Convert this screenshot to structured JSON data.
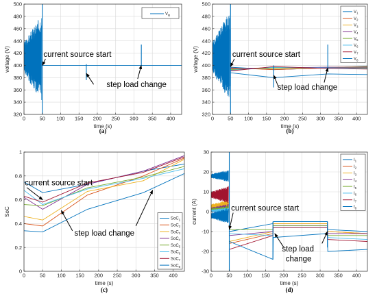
{
  "colors": {
    "c1": "#0072BD",
    "c2": "#D95319",
    "c3": "#EDB120",
    "c4": "#7E2F8E",
    "c5": "#77AC30",
    "c6": "#4DBEEE",
    "c7": "#A2142F",
    "c8": "#0072BD",
    "grid": "#d9d9d9",
    "axis": "#262626"
  },
  "chart_data": [
    {
      "panel": "(a)",
      "type": "line",
      "xlabel": "time (s)",
      "ylabel": "voltage (V)",
      "xlim": [
        0,
        430
      ],
      "ylim": [
        320,
        500
      ],
      "xticks": [
        0,
        50,
        100,
        150,
        200,
        250,
        300,
        350,
        400
      ],
      "yticks": [
        320,
        340,
        360,
        380,
        400,
        420,
        440,
        460,
        480,
        500
      ],
      "grid": true,
      "legend_position": "top-right",
      "series": [
        {
          "name": "V_R",
          "legend_main": "V",
          "legend_sub": "R",
          "color": "#0072BD",
          "oscillation": {
            "x_range": [
              0,
              48
            ],
            "y_range": [
              340,
              484
            ]
          },
          "spikes": [
            {
              "x": 50,
              "y_range": [
                320,
                500
              ]
            },
            {
              "x": 170,
              "y_range": [
                376,
                402
              ]
            },
            {
              "x": 320,
              "y_range": [
                400,
                434
              ]
            }
          ],
          "x": [
            50,
            170,
            320,
            430
          ],
          "y": [
            400,
            400,
            400,
            400
          ]
        }
      ],
      "annotations": [
        {
          "text": "current source start",
          "text_at": [
            53,
            414
          ],
          "arrow_to": [
            50,
            400
          ]
        },
        {
          "text": "step load change",
          "text_at": [
            225,
            365
          ],
          "arrow_from": [
            [
              190,
              369
            ],
            [
              310,
              378
            ]
          ],
          "arrow_to": [
            [
              170,
              387
            ],
            [
              320,
              400
            ]
          ]
        }
      ]
    },
    {
      "panel": "(b)",
      "type": "line",
      "xlabel": "time (s)",
      "ylabel": "voltage (V)",
      "xlim": [
        0,
        430
      ],
      "ylim": [
        320,
        500
      ],
      "xticks": [
        0,
        50,
        100,
        150,
        200,
        250,
        300,
        350,
        400
      ],
      "yticks": [
        320,
        340,
        360,
        380,
        400,
        420,
        440,
        460,
        480,
        500
      ],
      "grid": true,
      "legend_position": "top-right",
      "oscillation": {
        "x_range": [
          0,
          48
        ],
        "y_range": [
          340,
          488
        ]
      },
      "spikes": [
        {
          "x": 50,
          "y_range": [
            320,
            500
          ]
        },
        {
          "x": 170,
          "y_range": [
            364,
            400
          ]
        },
        {
          "x": 320,
          "y_range": [
            392,
            434
          ]
        }
      ],
      "x": [
        50,
        170,
        320,
        430
      ],
      "series": [
        {
          "name": "V_1",
          "legend_main": "V",
          "legend_sub": "1",
          "color": "#0072BD",
          "y": [
            397,
            393,
            396,
            399
          ]
        },
        {
          "name": "V_2",
          "legend_main": "V",
          "legend_sub": "2",
          "color": "#D95319",
          "y": [
            396,
            393,
            396,
            398
          ]
        },
        {
          "name": "V_3",
          "legend_main": "V",
          "legend_sub": "3",
          "color": "#EDB120",
          "y": [
            394,
            395,
            397,
            398
          ]
        },
        {
          "name": "V_4",
          "legend_main": "V",
          "legend_sub": "4",
          "color": "#7E2F8E",
          "y": [
            395,
            396,
            397,
            397
          ]
        },
        {
          "name": "V_5",
          "legend_main": "V",
          "legend_sub": "5",
          "color": "#77AC30",
          "y": [
            393,
            396,
            396,
            396
          ]
        },
        {
          "name": "V_6",
          "legend_main": "V",
          "legend_sub": "6",
          "color": "#4DBEEE",
          "y": [
            392,
            397,
            396,
            395
          ]
        },
        {
          "name": "V_7",
          "legend_main": "V",
          "legend_sub": "7",
          "color": "#A2142F",
          "y": [
            391,
            398,
            395,
            394
          ]
        },
        {
          "name": "V_8",
          "legend_main": "V",
          "legend_sub": "8",
          "color": "#0072BD",
          "y": [
            388,
            380,
            386,
            385
          ]
        }
      ],
      "annotations": [
        {
          "text": "current source start",
          "text_at": [
            55,
            414
          ],
          "arrow_to": [
            50,
            398
          ]
        },
        {
          "text": "step load change",
          "text_at": [
            180,
            360
          ],
          "arrow_from": [
            [
              183,
              365
            ],
            [
              310,
              372
            ]
          ],
          "arrow_to": [
            [
              170,
              384
            ],
            [
              320,
              396
            ]
          ]
        }
      ]
    },
    {
      "panel": "(c)",
      "type": "line",
      "xlabel": "time (s)",
      "ylabel": "SoC",
      "xlim": [
        0,
        430
      ],
      "ylim": [
        0,
        1
      ],
      "xticks": [
        0,
        50,
        100,
        150,
        200,
        250,
        300,
        350,
        400
      ],
      "yticks": [
        0,
        0.2,
        0.4,
        0.6,
        0.8,
        1
      ],
      "grid": true,
      "legend_position": "bottom-right",
      "x": [
        0,
        50,
        170,
        320,
        430
      ],
      "series": [
        {
          "name": "SoC_1",
          "legend_main": "SoC",
          "legend_sub": "1",
          "color": "#0072BD",
          "y": [
            0.75,
            0.66,
            0.73,
            0.84,
            0.9
          ]
        },
        {
          "name": "SoC_2",
          "legend_main": "SoC",
          "legend_sub": "2",
          "color": "#D95319",
          "y": [
            0.4,
            0.38,
            0.64,
            0.8,
            0.95
          ]
        },
        {
          "name": "SoC_3",
          "legend_main": "SoC",
          "legend_sub": "3",
          "color": "#EDB120",
          "y": [
            0.46,
            0.43,
            0.67,
            0.76,
            0.94
          ]
        },
        {
          "name": "SoC_4",
          "legend_main": "SoC",
          "legend_sub": "4",
          "color": "#7E2F8E",
          "y": [
            0.62,
            0.52,
            0.73,
            0.84,
            0.97
          ]
        },
        {
          "name": "SoC_5",
          "legend_main": "SoC",
          "legend_sub": "5",
          "color": "#77AC30",
          "y": [
            0.56,
            0.55,
            0.7,
            0.79,
            0.88
          ]
        },
        {
          "name": "SoC_6",
          "legend_main": "SoC",
          "legend_sub": "6",
          "color": "#4DBEEE",
          "y": [
            0.68,
            0.56,
            0.69,
            0.78,
            0.86
          ]
        },
        {
          "name": "SoC_7",
          "legend_main": "SoC",
          "legend_sub": "7",
          "color": "#A2142F",
          "y": [
            0.63,
            0.58,
            0.74,
            0.83,
            0.96
          ]
        },
        {
          "name": "SoC_8",
          "legend_main": "SoC",
          "legend_sub": "8",
          "color": "#0072BD",
          "y": [
            0.34,
            0.33,
            0.52,
            0.66,
            0.82
          ]
        }
      ],
      "annotations": [
        {
          "text": "current source start",
          "text_at": [
            2,
            0.72
          ],
          "arrow_to": [
            50,
            0.6
          ]
        },
        {
          "text": "step load change",
          "text_at": [
            135,
            0.3
          ],
          "arrow_from": [
            [
              130,
              0.34
            ],
            [
              300,
              0.38
            ]
          ],
          "arrow_to": [
            [
              100,
              0.51
            ],
            [
              345,
              0.68
            ]
          ]
        }
      ]
    },
    {
      "panel": "(d)",
      "type": "line",
      "xlabel": "time (s)",
      "ylabel": "current (A)",
      "xlim": [
        0,
        430
      ],
      "ylim": [
        -30,
        30
      ],
      "xticks": [
        0,
        50,
        100,
        150,
        200,
        250,
        300,
        350,
        400
      ],
      "yticks": [
        -30,
        -20,
        -10,
        0,
        10,
        20,
        30
      ],
      "grid": true,
      "legend_position": "top-right",
      "spikes": [
        {
          "x": 50,
          "y_range": [
            -30,
            30
          ]
        },
        {
          "x": 170,
          "y_range": [
            -24,
            -5
          ]
        },
        {
          "x": 320,
          "y_range": [
            -18,
            -5
          ]
        }
      ],
      "x": [
        50,
        170,
        171,
        320,
        321,
        430
      ],
      "series": [
        {
          "name": "I_1",
          "legend_main": "I",
          "legend_sub": "1",
          "color": "#0072BD",
          "oscillation_y": [
            15,
            21
          ],
          "y": [
            -10,
            -6,
            -5,
            -5,
            -9,
            -10
          ]
        },
        {
          "name": "I_2",
          "legend_main": "I",
          "legend_sub": "2",
          "color": "#D95319",
          "oscillation_y": [
            -2,
            5
          ],
          "y": [
            -16,
            -11,
            -6,
            -6,
            -10,
            -11
          ]
        },
        {
          "name": "I_3",
          "legend_main": "I",
          "legend_sub": "3",
          "color": "#EDB120",
          "oscillation_y": [
            -1,
            6
          ],
          "y": [
            -15,
            -10,
            -6,
            -6,
            -10,
            -11
          ]
        },
        {
          "name": "I_4",
          "legend_main": "I",
          "legend_sub": "4",
          "color": "#7E2F8E",
          "oscillation_y": [
            -2,
            4
          ],
          "y": [
            -12,
            -10,
            -7,
            -7,
            -11,
            -11
          ]
        },
        {
          "name": "I_5",
          "legend_main": "I",
          "legend_sub": "5",
          "color": "#77AC30",
          "oscillation_y": [
            -1,
            3
          ],
          "y": [
            -9,
            -9,
            -7,
            -7,
            -12,
            -12
          ]
        },
        {
          "name": "I_6",
          "legend_main": "I",
          "legend_sub": "6",
          "color": "#4DBEEE",
          "oscillation_y": [
            -1,
            2
          ],
          "y": [
            -11,
            -12,
            -8,
            -8,
            -13,
            -14
          ]
        },
        {
          "name": "I_7",
          "legend_main": "I",
          "legend_sub": "7",
          "color": "#A2142F",
          "oscillation_y": [
            4,
            13
          ],
          "y": [
            -19,
            -12,
            -8,
            -8,
            -14,
            -15
          ]
        },
        {
          "name": "I_8",
          "legend_main": "I",
          "legend_sub": "8",
          "color": "#0072BD",
          "oscillation_y": [
            -6,
            2
          ],
          "y": [
            -15,
            -24,
            -13,
            -11,
            -20,
            -19
          ]
        }
      ],
      "annotations": [
        {
          "text": "current source start",
          "text_at": [
            55,
            0.5
          ],
          "arrow_to": [
            50,
            -9
          ]
        },
        {
          "text": "step load",
          "text_at": [
            195,
            -20
          ],
          "arrow_from": [
            [
              200,
              -18
            ],
            [
              305,
              -16
            ]
          ],
          "arrow_to": [
            [
              175,
              -11
            ],
            [
              320,
              -10
            ]
          ]
        },
        {
          "text": "change",
          "text_at": [
            205,
            -25
          ]
        }
      ]
    }
  ]
}
